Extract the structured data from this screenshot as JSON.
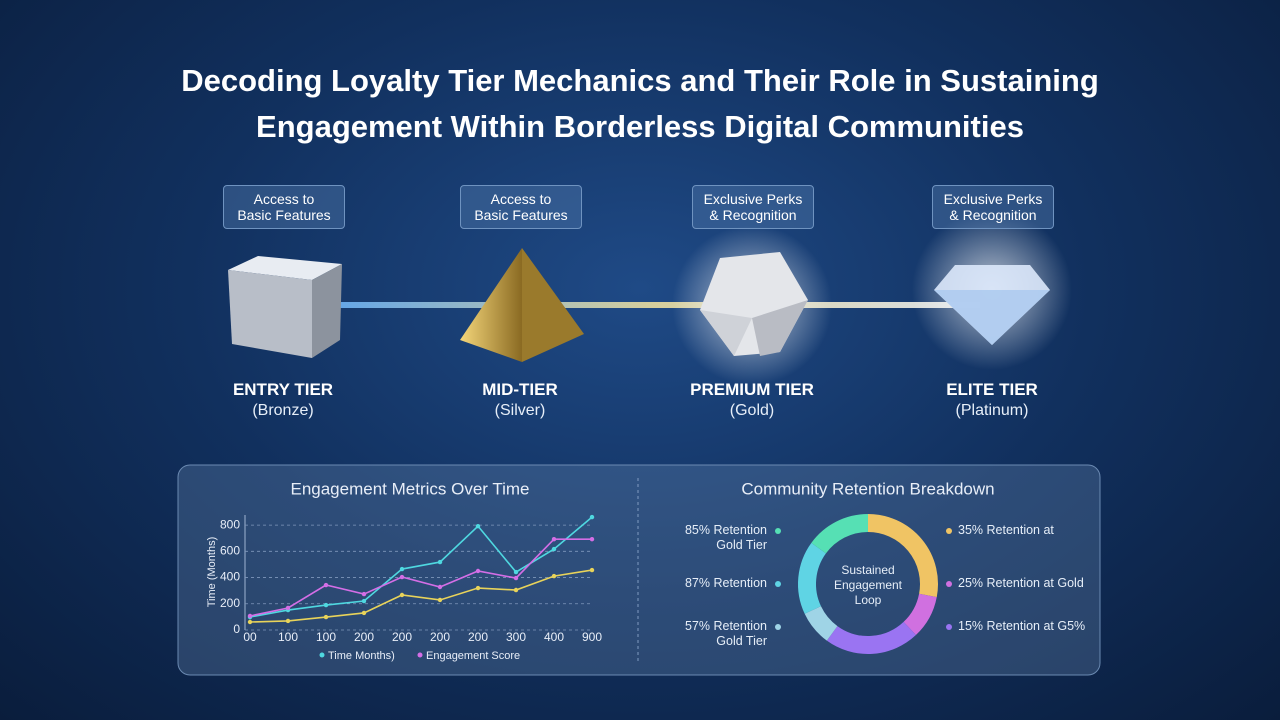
{
  "title": "Decoding Loyalty Tier Mechanics and Their Role in Sustaining Engagement Within Borderless Digital Communities",
  "tiers": [
    {
      "badge": [
        "Access to",
        "Basic Features"
      ],
      "name": "ENTRY TIER",
      "sub": "(Bronze)"
    },
    {
      "badge": [
        "Access to",
        "Basic Features"
      ],
      "name": "MID-TIER",
      "sub": "(Silver)"
    },
    {
      "badge": [
        "Exclusive Perks",
        "& Recognition"
      ],
      "name": "PREMIUM TIER",
      "sub": "(Gold)"
    },
    {
      "badge": [
        "Exclusive Perks",
        "& Recognition"
      ],
      "name": "ELITE TIER",
      "sub": "(Platinum)"
    }
  ],
  "chart_data": [
    {
      "type": "line",
      "title": "Engagement Metrics Over Time",
      "y_label": "Time (Months)",
      "categories": [
        "00",
        "100",
        "100",
        "200",
        "200",
        "200",
        "200",
        "300",
        "400",
        "900"
      ],
      "ylim": [
        0,
        900
      ],
      "yticks": [
        0,
        200,
        400,
        600,
        800
      ],
      "grid": true,
      "series": [
        {
          "name": "Time Months)",
          "color": "#4fd8e0",
          "values": [
            99,
            152,
            190,
            221,
            465,
            518,
            792,
            442,
            617,
            861
          ]
        },
        {
          "name": "Engagement Score",
          "color": "#d46ee6",
          "values": [
            107,
            168,
            343,
            274,
            404,
            328,
            450,
            396,
            693,
            693
          ]
        },
        {
          "color": "#e8d35a",
          "values": [
            61,
            69,
            99,
            130,
            267,
            229,
            320,
            305,
            411,
            457
          ]
        }
      ]
    },
    {
      "type": "donut",
      "title": "Community Retention Breakdown",
      "center_label": "Sustained Engagement Loop",
      "categories": [
        "35% Retention at",
        "25% Retention at Gold",
        "15% Retention at G5%",
        "57% Retention Gold Tier",
        "87% Retention",
        "85% Retention Gold Tier"
      ],
      "values": [
        28,
        10,
        22,
        8,
        17,
        15
      ],
      "colors": [
        "#f0c464",
        "#d070e0",
        "#9a74f2",
        "#9fd4e6",
        "#5fd4e4",
        "#56e0b4"
      ]
    }
  ]
}
